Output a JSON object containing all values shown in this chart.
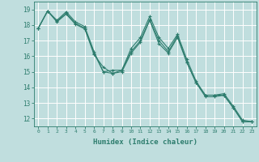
{
  "xlabel": "Humidex (Indice chaleur)",
  "ylabel": "",
  "xlim": [
    -0.5,
    23.5
  ],
  "ylim": [
    11.5,
    19.5
  ],
  "yticks": [
    12,
    13,
    14,
    15,
    16,
    17,
    18,
    19
  ],
  "xticks": [
    0,
    1,
    2,
    3,
    4,
    5,
    6,
    7,
    8,
    9,
    10,
    11,
    12,
    13,
    14,
    15,
    16,
    17,
    18,
    19,
    20,
    21,
    22,
    23
  ],
  "bg_color": "#c0dede",
  "grid_color": "#ffffff",
  "line_color": "#2e7d6e",
  "line1": [
    17.8,
    18.9,
    18.3,
    18.85,
    18.2,
    17.9,
    16.3,
    15.0,
    15.1,
    15.1,
    16.5,
    17.2,
    18.55,
    17.2,
    16.5,
    17.4,
    15.8,
    14.4,
    13.5,
    13.5,
    13.6,
    12.8,
    11.9,
    11.8
  ],
  "line2": [
    17.8,
    18.9,
    18.25,
    18.75,
    18.1,
    17.8,
    16.1,
    15.3,
    14.9,
    15.1,
    16.3,
    17.0,
    18.35,
    17.0,
    16.3,
    17.3,
    15.6,
    14.3,
    13.5,
    13.5,
    13.5,
    12.7,
    11.8,
    11.8
  ],
  "line3": [
    17.8,
    18.9,
    18.2,
    18.7,
    18.05,
    17.75,
    16.2,
    15.0,
    14.9,
    15.0,
    16.2,
    16.9,
    18.3,
    16.8,
    16.2,
    17.2,
    15.6,
    14.3,
    13.4,
    13.4,
    13.5,
    12.7,
    11.8,
    11.8
  ]
}
